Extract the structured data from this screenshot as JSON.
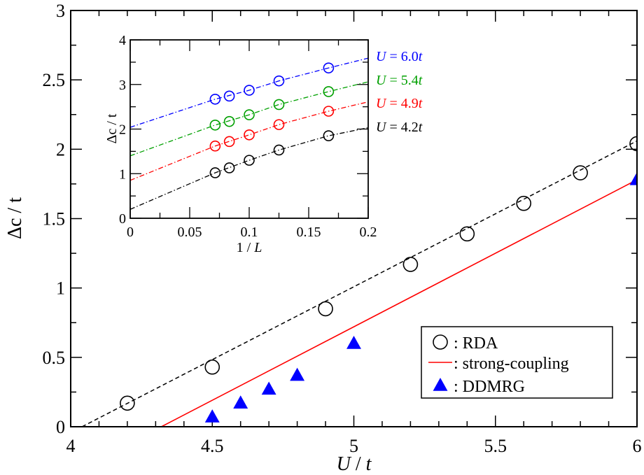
{
  "chart_data": [
    {
      "type": "scatter",
      "xlabel": "U / t",
      "ylabel": "Δc / t",
      "xlim": [
        4,
        6
      ],
      "ylim": [
        0,
        3
      ],
      "xticks": [
        "4",
        "4.5",
        "5",
        "5.5",
        "6"
      ],
      "yticks": [
        "0",
        "0.5",
        "1",
        "1.5",
        "2",
        "2.5",
        "3"
      ],
      "grid": false,
      "legend_position": "bottom-right",
      "series": [
        {
          "name": ": RDA",
          "marker": "open-circle",
          "color": "#000000",
          "line": "dashed",
          "x": [
            4.2,
            4.5,
            4.9,
            5.2,
            5.4,
            5.6,
            5.8,
            6.0
          ],
          "y": [
            0.17,
            0.43,
            0.85,
            1.17,
            1.39,
            1.61,
            1.83,
            2.04
          ],
          "fit": {
            "x": [
              4.04,
              6.0
            ],
            "y": [
              0.0,
              2.06
            ]
          }
        },
        {
          "name": ": strong-coupling",
          "marker": "none",
          "color": "#ff0000",
          "line": "solid",
          "x": [
            4.32,
            6.0
          ],
          "y": [
            0.0,
            1.78
          ]
        },
        {
          "name": ": DDMRG",
          "marker": "filled-triangle",
          "color": "#0000ff",
          "line": "none",
          "x": [
            4.5,
            4.6,
            4.7,
            4.8,
            5.0,
            6.0
          ],
          "y": [
            0.07,
            0.17,
            0.27,
            0.37,
            0.6,
            1.78
          ]
        }
      ]
    },
    {
      "type": "scatter",
      "xlabel": "1 / L",
      "ylabel": "Δc / t",
      "xlim": [
        0,
        0.2
      ],
      "ylim": [
        0,
        4
      ],
      "xticks": [
        "0",
        "0.05",
        "0.1",
        "0.15",
        "0.2"
      ],
      "yticks": [
        "0",
        "1",
        "2",
        "3",
        "4"
      ],
      "grid": false,
      "series": [
        {
          "name": "U = 6.0t",
          "color": "#0000ff",
          "marker": "open-circle",
          "line": "dash-dot",
          "x": [
            0.0714,
            0.0833,
            0.1,
            0.125,
            0.1667
          ],
          "y": [
            2.67,
            2.74,
            2.87,
            3.08,
            3.37
          ],
          "fit": {
            "x": [
              0,
              0.0714,
              0.1,
              0.125,
              0.1667,
              0.2
            ],
            "y": [
              2.04,
              2.67,
              2.87,
              3.08,
              3.37,
              3.59
            ]
          }
        },
        {
          "name": "U = 5.4t",
          "color": "#00a000",
          "marker": "open-circle",
          "line": "dash-dot",
          "x": [
            0.0714,
            0.0833,
            0.1,
            0.125,
            0.1667
          ],
          "y": [
            2.09,
            2.17,
            2.32,
            2.55,
            2.84
          ],
          "fit": {
            "x": [
              0,
              0.0714,
              0.1,
              0.125,
              0.1667,
              0.2
            ],
            "y": [
              1.4,
              2.09,
              2.32,
              2.55,
              2.84,
              3.06
            ]
          }
        },
        {
          "name": "U = 4.9t",
          "color": "#ff0000",
          "marker": "open-circle",
          "line": "dash-dot",
          "x": [
            0.0714,
            0.0833,
            0.1,
            0.125,
            0.1667
          ],
          "y": [
            1.62,
            1.72,
            1.87,
            2.1,
            2.4
          ],
          "fit": {
            "x": [
              0,
              0.0714,
              0.1,
              0.125,
              0.1667,
              0.2
            ],
            "y": [
              0.85,
              1.62,
              1.87,
              2.1,
              2.4,
              2.61
            ]
          }
        },
        {
          "name": "U = 4.2t",
          "color": "#000000",
          "marker": "open-circle",
          "line": "dash-dot",
          "x": [
            0.0714,
            0.0833,
            0.1,
            0.125,
            0.1667
          ],
          "y": [
            1.02,
            1.13,
            1.3,
            1.53,
            1.85
          ],
          "fit": {
            "x": [
              0,
              0.0714,
              0.1,
              0.125,
              0.1667,
              0.2
            ],
            "y": [
              0.2,
              1.02,
              1.3,
              1.53,
              1.85,
              2.03
            ]
          }
        }
      ]
    }
  ]
}
